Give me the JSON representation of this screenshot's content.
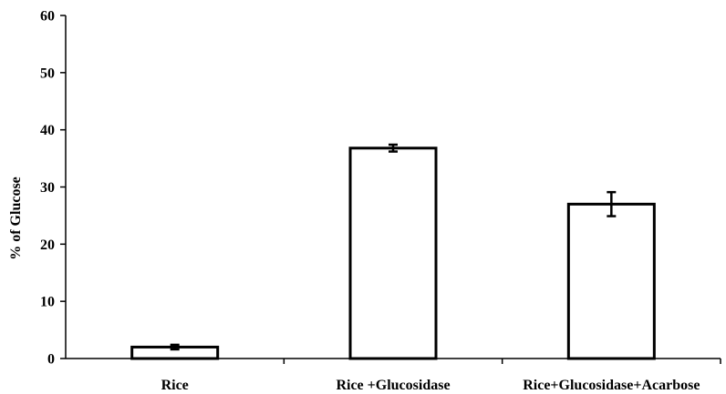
{
  "chart_data": {
    "type": "bar",
    "title": "",
    "xlabel": "",
    "ylabel": "% of Glucose",
    "ylim": [
      0,
      60
    ],
    "yticks": [
      0,
      10,
      20,
      30,
      40,
      50,
      60
    ],
    "categories": [
      "Rice",
      "Rice +Glucosidase",
      "Rice+Glucosidase+Acarbose"
    ],
    "values": [
      2,
      36.8,
      27
    ],
    "error": [
      0.4,
      0.6,
      2.1
    ],
    "grid": false,
    "legend": "none",
    "bar_fill": "#ffffff",
    "bar_stroke": "#000000"
  }
}
